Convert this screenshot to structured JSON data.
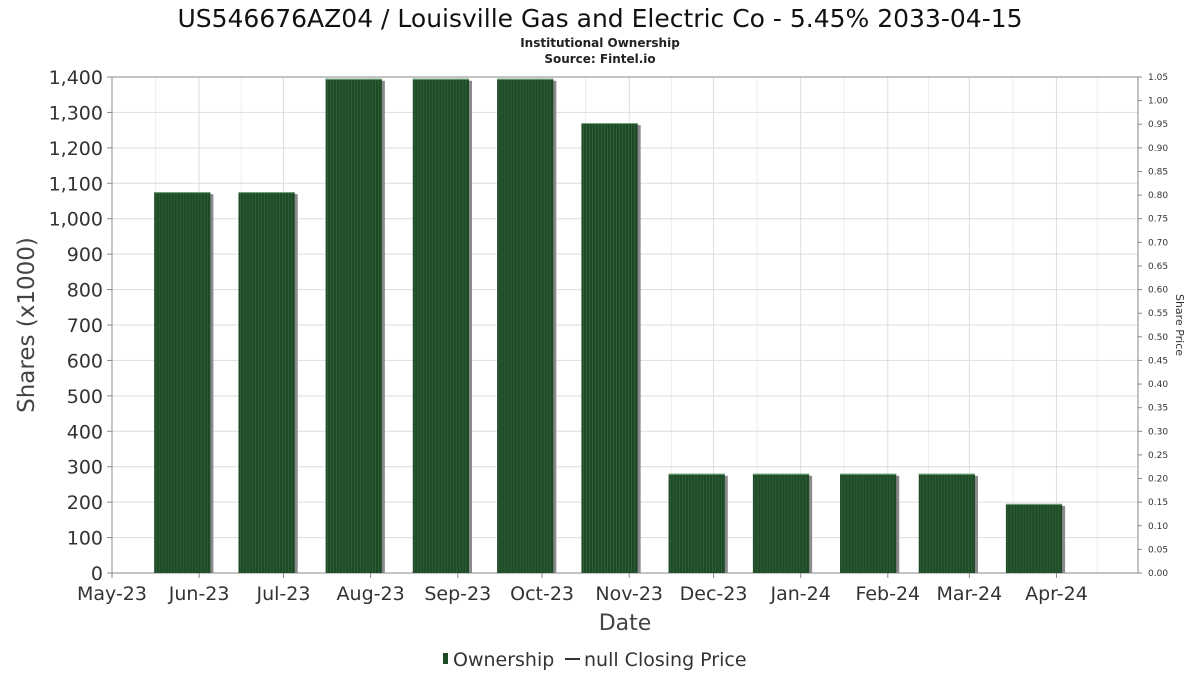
{
  "title": "US546676AZ04 / Louisville Gas and Electric Co - 5.45% 2033-04-15",
  "subtitle": "Institutional Ownership",
  "source": "Source: Fintel.io",
  "colors": {
    "bar": "#1f4a28",
    "bar_stripe": "#3f7a48",
    "bar_shadow": "#8a8a8a",
    "grid": "#dddddd",
    "axis": "#888888",
    "text": "#333333"
  },
  "chart_data": {
    "type": "bar",
    "title": "US546676AZ04 / Louisville Gas and Electric Co - 5.45% 2033-04-15",
    "subtitle": "Institutional Ownership",
    "xlabel": "Date",
    "ylabel": "Shares (x1000)",
    "y2label": "Share Price",
    "x_ticks": [
      "May-23",
      "Jun-23",
      "Jul-23",
      "Aug-23",
      "Sep-23",
      "Oct-23",
      "Nov-23",
      "Dec-23",
      "Jan-24",
      "Feb-24",
      "Mar-24",
      "Apr-24"
    ],
    "y_ticks": [
      "0",
      "100",
      "200",
      "300",
      "400",
      "500",
      "600",
      "700",
      "800",
      "900",
      "1,000",
      "1,100",
      "1,200",
      "1,300",
      "1,400"
    ],
    "y2_ticks": [
      "0.00",
      "0.05",
      "0.10",
      "0.15",
      "0.20",
      "0.25",
      "0.30",
      "0.35",
      "0.40",
      "0.45",
      "0.50",
      "0.55",
      "0.60",
      "0.65",
      "0.70",
      "0.75",
      "0.80",
      "0.85",
      "0.90",
      "0.95",
      "1.00",
      "1.05"
    ],
    "ylim": [
      0,
      1400
    ],
    "y2lim": [
      0,
      1.05
    ],
    "xlim": [
      "2023-05-01",
      "2024-04-30"
    ],
    "grid": true,
    "legend_position": "bottom-center",
    "series": [
      {
        "name": "Ownership",
        "type": "bar",
        "points": [
          {
            "start": "2023-05-16",
            "end": "2023-06-05",
            "value": 1075
          },
          {
            "start": "2023-06-15",
            "end": "2023-07-05",
            "value": 1075
          },
          {
            "start": "2023-07-16",
            "end": "2023-08-05",
            "value": 1395
          },
          {
            "start": "2023-08-16",
            "end": "2023-09-05",
            "value": 1395
          },
          {
            "start": "2023-09-15",
            "end": "2023-10-05",
            "value": 1395
          },
          {
            "start": "2023-10-15",
            "end": "2023-11-04",
            "value": 1270
          },
          {
            "start": "2023-11-15",
            "end": "2023-12-05",
            "value": 280
          },
          {
            "start": "2023-12-15",
            "end": "2024-01-04",
            "value": 280
          },
          {
            "start": "2024-01-15",
            "end": "2024-02-04",
            "value": 280
          },
          {
            "start": "2024-02-12",
            "end": "2024-03-03",
            "value": 280
          },
          {
            "start": "2024-03-14",
            "end": "2024-04-03",
            "value": 195
          }
        ]
      },
      {
        "name": "null Closing Price",
        "type": "line",
        "points": []
      }
    ]
  }
}
